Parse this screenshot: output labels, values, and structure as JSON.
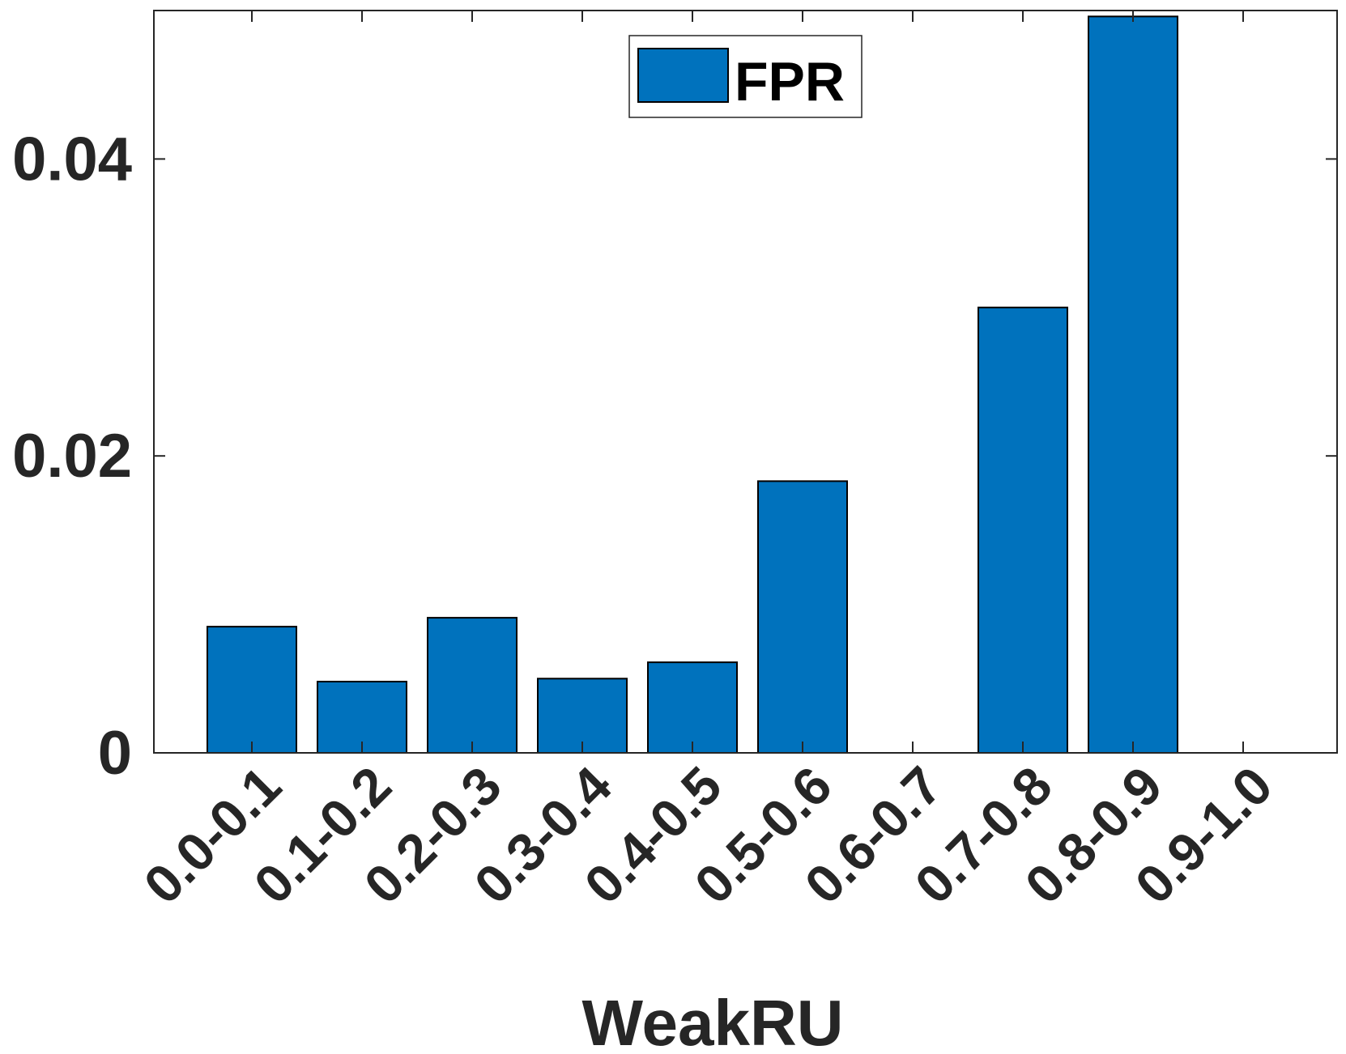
{
  "chart_data": {
    "type": "bar",
    "categories": [
      "0.0-0.1",
      "0.1-0.2",
      "0.2-0.3",
      "0.3-0.4",
      "0.4-0.5",
      "0.5-0.6",
      "0.6-0.7",
      "0.7-0.8",
      "0.8-0.9",
      "0.9-1.0"
    ],
    "series": [
      {
        "name": "FPR",
        "values": [
          0.0085,
          0.0048,
          0.0091,
          0.005,
          0.0061,
          0.0183,
          0.0,
          0.03,
          0.0496,
          0.0
        ]
      }
    ],
    "xlabel": "WeakRU",
    "ylabel": "",
    "ylim": [
      0,
      0.05
    ],
    "yticks": [
      0,
      0.02,
      0.04
    ],
    "ytick_labels": [
      "0",
      "0.02",
      "0.04"
    ],
    "legend_position": "top-center",
    "grid": false,
    "bar_color": "#0072BD"
  }
}
